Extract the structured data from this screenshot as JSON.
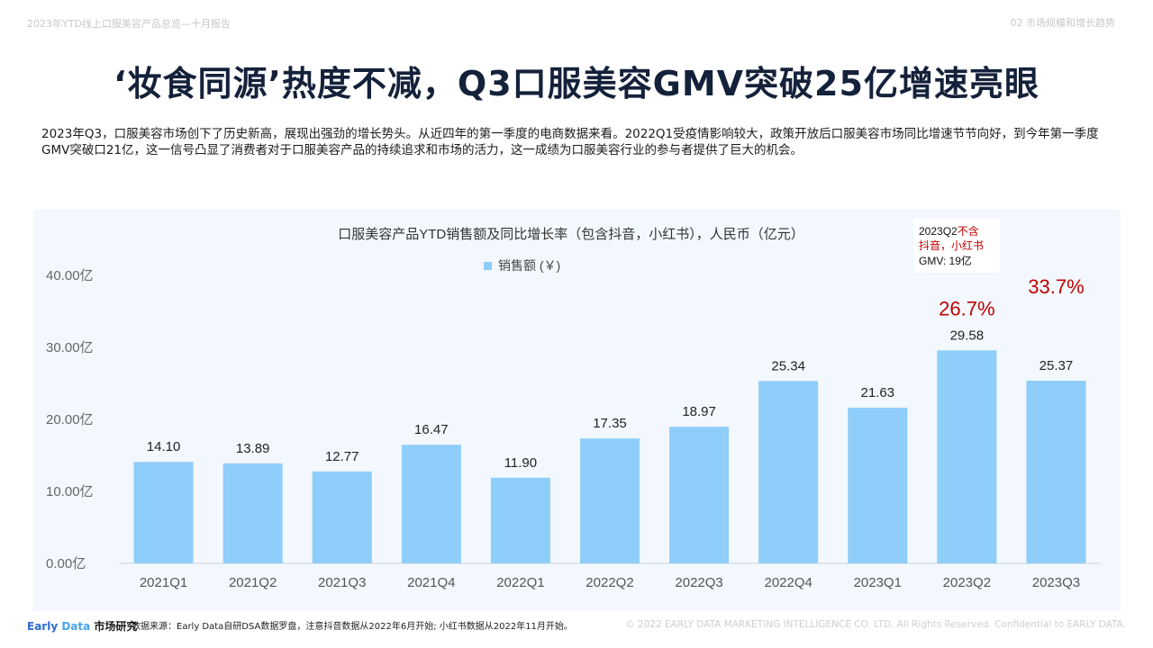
{
  "header": {
    "report_name": "2023年YTD线上口服美容产品总览—十月报告",
    "section": "02 市场规模和增长趋势"
  },
  "title": "‘妆食同源’热度不减，Q3口服美容GMV突破25亿增速亮眼",
  "intro": "2023年Q3，口服美容市场创下了历史新高，展现出强劲的增长势头。从近四年的第一季度的电商数据来看。2022Q1受疫情影响较大，政策开放后口服美容市场同比增速节节向好，到今年第一季度GMV突破口21亿，这一信号凸显了消费者对于口服美容产品的持续追求和市场的活力，这一成绩为口服美容行业的参与者提供了巨大的机会。",
  "colors": {
    "bar": "#8fcdfa",
    "growth_label": "#c00000",
    "note_red": "#c00000",
    "panel_bg": "#f2f8fd",
    "title": "#14213a"
  },
  "chart_data": {
    "type": "bar",
    "title": "口服美容产品YTD销售额及同比增长率（包含抖音，小红书），人民币（亿元）",
    "categories": [
      "2021Q1",
      "2021Q2",
      "2021Q3",
      "2021Q4",
      "2022Q1",
      "2022Q2",
      "2022Q3",
      "2022Q4",
      "2023Q1",
      "2023Q2",
      "2023Q3"
    ],
    "series": [
      {
        "name": "销售额 (￥)",
        "values": [
          14.1,
          13.89,
          12.77,
          16.47,
          11.9,
          17.35,
          18.97,
          25.34,
          21.63,
          29.58,
          25.37
        ]
      }
    ],
    "value_labels": [
      "14.10",
      "13.89",
      "12.77",
      "16.47",
      "11.90",
      "17.35",
      "18.97",
      "25.34",
      "21.63",
      "29.58",
      "25.37"
    ],
    "growth_labels": [
      {
        "category": "2023Q2",
        "text": "26.7%"
      },
      {
        "category": "2023Q3",
        "text": "33.7%"
      }
    ],
    "ylim": [
      0,
      40
    ],
    "yticks": [
      "0.00亿",
      "10.00亿",
      "20.00亿",
      "30.00亿",
      "40.00亿"
    ],
    "ytick_values": [
      0,
      10,
      20,
      30,
      40
    ],
    "legend_position": "top-center",
    "grid": false,
    "note": {
      "line1_black": "2023Q2",
      "line1_red": "不含",
      "line2_red": "抖音，小红书",
      "line3": "GMV: 19亿"
    }
  },
  "footer": {
    "logo_a": "Early",
    "logo_b": " Data",
    "logo_c": " 市场研究",
    "source": "数据来源：Early Data自研DSA数据罗盘，注意抖音数据从2022年6月开始; 小红书数据从2022年11月开始。",
    "copyright": "© 2022 EARLY DATA MARKETING INTELLIGENCE CO. LTD. All Rights Reserved. Confidential to EARLY DATA."
  }
}
